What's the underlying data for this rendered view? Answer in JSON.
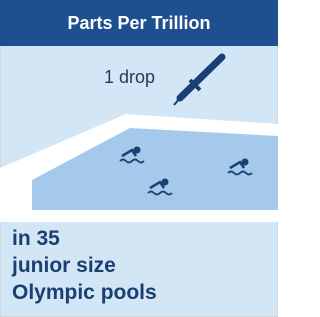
{
  "header": {
    "title": "Parts Per Trillion"
  },
  "labels": {
    "drop": "1 drop",
    "caption": [
      "in 35",
      "junior size",
      "Olympic pools"
    ]
  }
}
